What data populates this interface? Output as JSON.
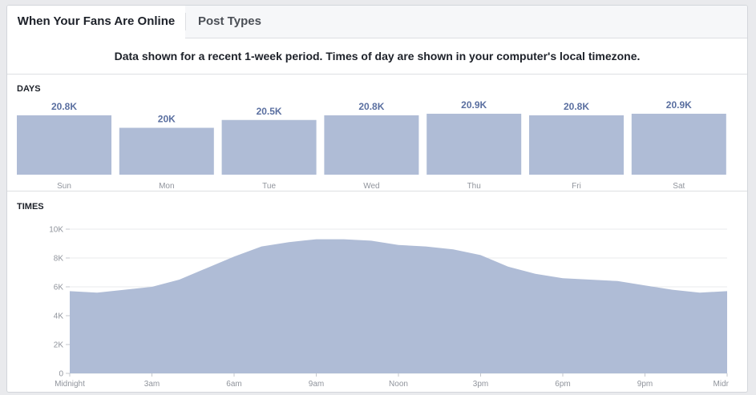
{
  "tabs": [
    {
      "label": "When Your Fans Are Online",
      "active": true
    },
    {
      "label": "Post Types",
      "active": false
    }
  ],
  "notice": "Data shown for a recent 1-week period. Times of day are shown in your computer's local timezone.",
  "sections": {
    "days_label": "DAYS",
    "times_label": "TIMES"
  },
  "colors": {
    "bar_fill": "#afbcd6",
    "value_label": "#5a6fa0",
    "axis_text": "#90949c",
    "grid": "#e9ebee"
  },
  "chart_data": [
    {
      "type": "bar",
      "categories": [
        "Sun",
        "Mon",
        "Tue",
        "Wed",
        "Thu",
        "Fri",
        "Sat"
      ],
      "values": [
        20800,
        20000,
        20500,
        20800,
        20900,
        20800,
        20900
      ],
      "value_labels": [
        "20.8K",
        "20K",
        "20.5K",
        "20.8K",
        "20.9K",
        "20.8K",
        "20.9K"
      ]
    },
    {
      "type": "area",
      "x": [
        0,
        1,
        2,
        3,
        4,
        5,
        6,
        7,
        8,
        9,
        10,
        11,
        12,
        13,
        14,
        15,
        16,
        17,
        18,
        19,
        20,
        21,
        22,
        23,
        24
      ],
      "values": [
        5700,
        5600,
        5800,
        6000,
        6500,
        7300,
        8100,
        8800,
        9100,
        9300,
        9300,
        9200,
        8900,
        8800,
        8600,
        8200,
        7400,
        6900,
        6600,
        6500,
        6400,
        6100,
        5800,
        5600,
        5700
      ],
      "x_tick_positions": [
        0,
        3,
        6,
        9,
        12,
        15,
        18,
        21,
        24
      ],
      "x_tick_labels": [
        "Midnight",
        "3am",
        "6am",
        "9am",
        "Noon",
        "3pm",
        "6pm",
        "9pm",
        "Midr"
      ],
      "y_ticks": [
        0,
        2000,
        4000,
        6000,
        8000,
        10000
      ],
      "y_tick_labels": [
        "0",
        "2K",
        "4K",
        "6K",
        "8K",
        "10K"
      ],
      "ylim": [
        0,
        10000
      ],
      "xlim": [
        0,
        24
      ],
      "grid": true
    }
  ]
}
